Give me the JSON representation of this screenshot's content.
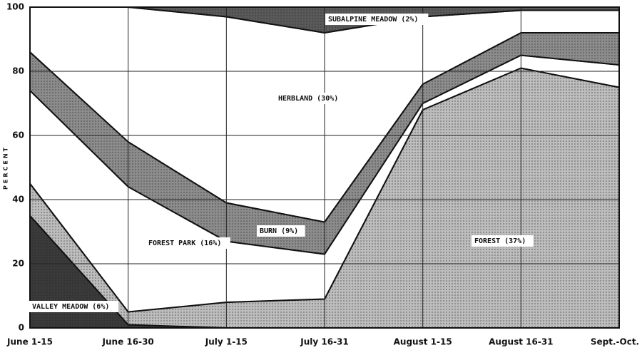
{
  "chart_data": {
    "type": "stacked_area",
    "y_label": "PERCENT",
    "categories": [
      "June 1-15",
      "June 16-30",
      "July 1-15",
      "July 16-31",
      "August 1-15",
      "August 16-31",
      "Sept.-Oct."
    ],
    "series": [
      {
        "name": "VALLEY MEADOW (6%)",
        "color": "#3a3a3a",
        "values": [
          35,
          1,
          0,
          0,
          0,
          0,
          0
        ]
      },
      {
        "name": "FOREST (37%)",
        "color": "#bdbdbd",
        "values": [
          10,
          4,
          8,
          9,
          68,
          81,
          75
        ]
      },
      {
        "name": "FOREST PARK (16%)",
        "color": "#ffffff",
        "values": [
          29,
          39,
          19,
          14,
          2,
          4,
          7
        ]
      },
      {
        "name": "BURN (9%)",
        "color": "#8c8c8c",
        "values": [
          12,
          14,
          12,
          10,
          6,
          7,
          10
        ]
      },
      {
        "name": "HERBLAND (30%)",
        "color": "#ffffff",
        "values": [
          14,
          42,
          58,
          59,
          21,
          7,
          7
        ]
      },
      {
        "name": "SUBALPINE MEADOW (2%)",
        "color": "#5a5a5a",
        "values": [
          0,
          0,
          3,
          8,
          3,
          1,
          1
        ]
      }
    ],
    "ylim": [
      0,
      100
    ],
    "yticks": [
      0,
      20,
      40,
      60,
      80,
      100
    ],
    "grid": true
  }
}
